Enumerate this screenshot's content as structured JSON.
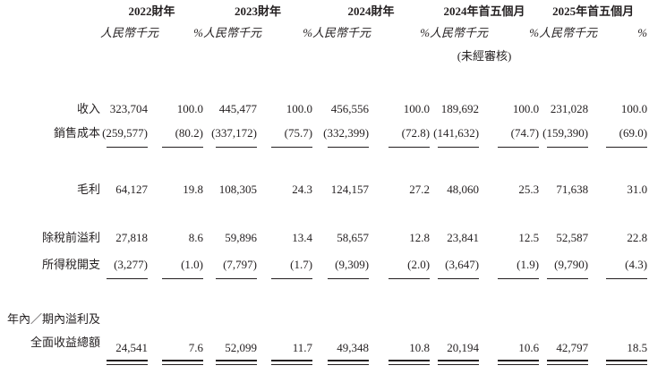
{
  "page": {
    "background": "#ffffff",
    "text_color": "#231f20"
  },
  "table": {
    "column_groups": [
      {
        "label": "2022財年",
        "unit": "人民幣千元",
        "pct": "%",
        "note": ""
      },
      {
        "label": "2023財年",
        "unit": "人民幣千元",
        "pct": "%",
        "note": ""
      },
      {
        "label": "2024財年",
        "unit": "人民幣千元",
        "pct": "%",
        "note": ""
      },
      {
        "label": "2024年首五個月",
        "unit": "人民幣千元",
        "pct": "%",
        "note": "(未經審核)"
      },
      {
        "label": "2025年首五個月",
        "unit": "人民幣千元",
        "pct": "%",
        "note": ""
      }
    ],
    "rows": [
      {
        "id": "revenue",
        "label_lines": [
          "收入"
        ],
        "values": [
          "323,704",
          "100.0",
          "445,477",
          "100.0",
          "456,556",
          "100.0",
          "189,692",
          "100.0",
          "231,028",
          "100.0"
        ],
        "rule": "none"
      },
      {
        "id": "cost-of-sales",
        "label_lines": [
          "銷售成本"
        ],
        "values": [
          "(259,577)",
          "(80.2)",
          "(337,172)",
          "(75.7)",
          "(332,399)",
          "(72.8)",
          "(141,632)",
          "(74.7)",
          "(159,390)",
          "(69.0)"
        ],
        "rule": "single"
      },
      {
        "id": "gross-profit",
        "label_lines": [
          "毛利"
        ],
        "values": [
          "64,127",
          "19.8",
          "108,305",
          "24.3",
          "124,157",
          "27.2",
          "48,060",
          "25.3",
          "71,638",
          "31.0"
        ],
        "rule": "none"
      },
      {
        "id": "profit-before-tax",
        "label_lines": [
          "除稅前溢利"
        ],
        "values": [
          "27,818",
          "8.6",
          "59,896",
          "13.4",
          "58,657",
          "12.8",
          "23,841",
          "12.5",
          "52,587",
          "22.8"
        ],
        "rule": "none"
      },
      {
        "id": "income-tax",
        "label_lines": [
          "所得稅開支"
        ],
        "values": [
          "(3,277)",
          "(1.0)",
          "(7,797)",
          "(1.7)",
          "(9,309)",
          "(2.0)",
          "(3,647)",
          "(1.9)",
          "(9,790)",
          "(4.3)"
        ],
        "rule": "single"
      },
      {
        "id": "total-comprehensive-income",
        "label_lines": [
          "年內／期內溢利及",
          "全面收益總額"
        ],
        "values": [
          "24,541",
          "7.6",
          "52,099",
          "11.7",
          "49,348",
          "10.8",
          "20,194",
          "10.6",
          "42,797",
          "18.5"
        ],
        "rule": "double"
      }
    ]
  }
}
